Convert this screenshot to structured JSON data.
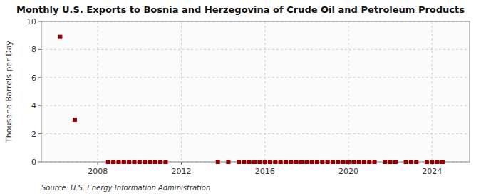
{
  "chart_data": {
    "type": "scatter",
    "title": "Monthly U.S. Exports to Bosnia and Herzegovina of Crude Oil and Petroleum Products",
    "ylabel": "Thousand Barrels per Day",
    "source": "Source: U.S. Energy Information Administration",
    "color": "#8b0000",
    "marker": "square",
    "grid": true,
    "xlim": [
      2005.3,
      2025.8
    ],
    "xticks": [
      2008,
      2012,
      2016,
      2020,
      2024
    ],
    "ylim": [
      0,
      10
    ],
    "yticks": [
      0,
      2,
      4,
      6,
      8,
      10
    ],
    "x": [
      2006.2,
      2006.9,
      2008.5,
      2008.75,
      2009.0,
      2009.25,
      2009.5,
      2009.75,
      2010.0,
      2010.25,
      2010.5,
      2010.75,
      2011.0,
      2011.25,
      2013.75,
      2014.25,
      2014.75,
      2015.0,
      2015.25,
      2015.5,
      2015.75,
      2016.0,
      2016.25,
      2016.5,
      2016.75,
      2017.0,
      2017.25,
      2017.5,
      2017.75,
      2018.0,
      2018.25,
      2018.5,
      2018.75,
      2019.0,
      2019.25,
      2019.5,
      2019.75,
      2020.0,
      2020.25,
      2020.5,
      2020.75,
      2021.0,
      2021.25,
      2021.75,
      2022.0,
      2022.25,
      2022.75,
      2023.0,
      2023.25,
      2023.75,
      2024.0,
      2024.25,
      2024.5
    ],
    "values": [
      8.9,
      3.0,
      0.0,
      0.0,
      0.0,
      0.0,
      0.0,
      0.0,
      0.0,
      0.0,
      0.0,
      0.0,
      0.0,
      0.0,
      0.0,
      0.0,
      0.0,
      0.0,
      0.0,
      0.0,
      0.0,
      0.0,
      0.0,
      0.0,
      0.0,
      0.0,
      0.0,
      0.0,
      0.0,
      0.0,
      0.0,
      0.0,
      0.0,
      0.0,
      0.0,
      0.0,
      0.0,
      0.0,
      0.0,
      0.0,
      0.0,
      0.0,
      0.0,
      0.0,
      0.0,
      0.0,
      0.0,
      0.0,
      0.0,
      0.0,
      0.0,
      0.0,
      0.0
    ]
  }
}
